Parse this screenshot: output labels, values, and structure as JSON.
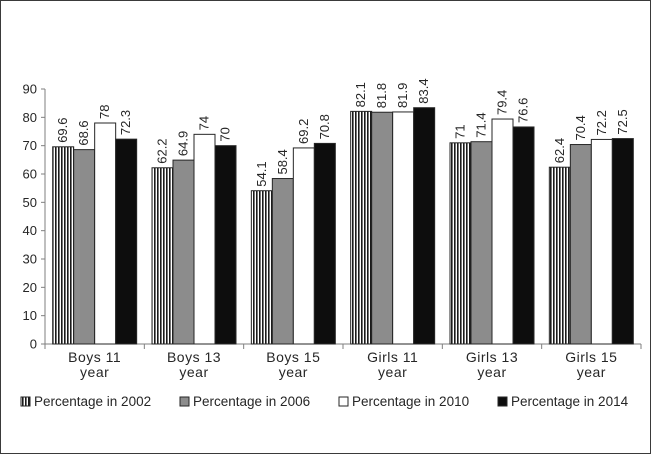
{
  "chart_data": {
    "type": "bar",
    "categories": [
      [
        "Boys 11",
        "year"
      ],
      [
        "Boys 13",
        "year"
      ],
      [
        "Boys 15",
        "year"
      ],
      [
        "Girls 11",
        "year"
      ],
      [
        "Girls 13",
        "year"
      ],
      [
        "Girls 15",
        "year"
      ]
    ],
    "series": [
      {
        "name": "Percentage in 2002",
        "values": [
          69.6,
          62.2,
          54.1,
          82.1,
          71,
          62.4
        ],
        "labels": [
          "69.6",
          "62.2",
          "54.1",
          "82.1",
          "71",
          "62.4"
        ],
        "style": "striped"
      },
      {
        "name": "Percentage in 2006",
        "values": [
          68.6,
          64.9,
          58.4,
          81.8,
          71.4,
          70.4
        ],
        "labels": [
          "68.6",
          "64.9",
          "58.4",
          "81.8",
          "71.4",
          "70.4"
        ],
        "style": "gray"
      },
      {
        "name": "Percentage in 2010",
        "values": [
          78,
          74,
          69.2,
          81.9,
          79.4,
          72.2
        ],
        "labels": [
          "78",
          "74",
          "69.2",
          "81.9",
          "79.4",
          "72.2"
        ],
        "style": "white"
      },
      {
        "name": "Percentage in 2014",
        "values": [
          72.3,
          70,
          70.8,
          83.4,
          76.6,
          72.5
        ],
        "labels": [
          "72.3",
          "70",
          "70.8",
          "83.4",
          "76.6",
          "72.5"
        ],
        "style": "black"
      }
    ],
    "yticks": [
      "0",
      "10",
      "20",
      "30",
      "40",
      "50",
      "60",
      "70",
      "80",
      "90"
    ],
    "ylim": [
      0,
      90
    ],
    "title": "",
    "xlabel": "",
    "ylabel": "",
    "grid": false,
    "legend_position": "bottom",
    "colors": {
      "gray": "#8c8c8c",
      "black": "#0d0d0d",
      "white": "#ffffff",
      "stripe_dark": "#1a1a1a",
      "stripe_light": "#ffffff",
      "border": "#262626"
    }
  }
}
